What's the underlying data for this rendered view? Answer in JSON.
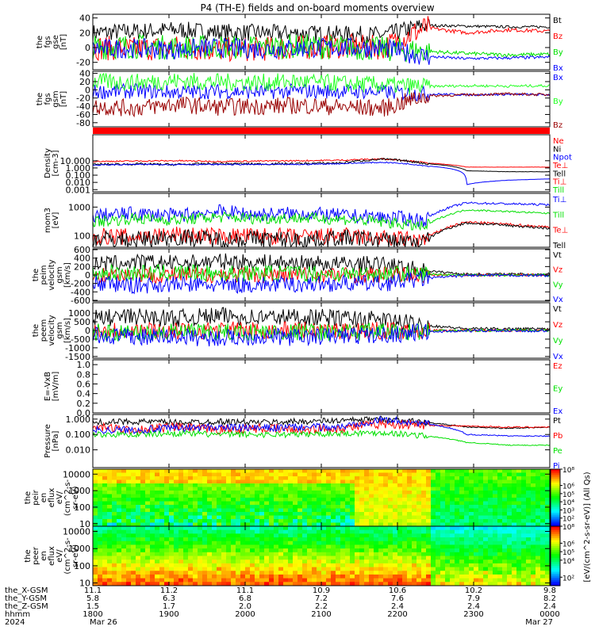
{
  "title": "P4 (TH-E) fields and on-board moments overview",
  "colors": {
    "black": "#000000",
    "red": "#ff0000",
    "green": "#00e000",
    "blue": "#0000ff",
    "darkred": "#990000",
    "lightgreen": "#22ff22"
  },
  "chart_data": [
    {
      "type": "line",
      "id": "fgs_gse",
      "ylabel": [
        "the",
        "fgs",
        "gse",
        "[nT]"
      ],
      "ylim": [
        -30,
        45
      ],
      "yticks": [
        "40",
        "20",
        "0",
        "-20"
      ],
      "ytick_values": [
        40,
        20,
        0,
        -20
      ],
      "series": [
        {
          "name": "Bt",
          "color": "#000000",
          "noise": 0.35,
          "values": [
            20,
            22,
            24,
            21,
            20,
            19,
            18,
            17,
            30,
            29,
            28,
            28
          ]
        },
        {
          "name": "Bz",
          "color": "#ff0000",
          "noise": 0.5,
          "values": [
            0,
            -2,
            0,
            -3,
            -2,
            0,
            2,
            0,
            27,
            20,
            24,
            22
          ]
        },
        {
          "name": "By",
          "color": "#00e000",
          "noise": 0.5,
          "values": [
            0,
            2,
            0,
            1,
            0,
            2,
            0,
            -2,
            -5,
            -8,
            -10,
            -9
          ]
        },
        {
          "name": "Bx",
          "color": "#0000ff",
          "noise": 0.4,
          "values": [
            -2,
            -1,
            -3,
            0,
            -2,
            -1,
            0,
            -1,
            -12,
            -15,
            -14,
            -13
          ]
        }
      ]
    },
    {
      "type": "line",
      "id": "fgs_gsm",
      "ylabel": [
        "the",
        "fgs",
        "gsm",
        "[nT]"
      ],
      "ylim": [
        -90,
        45
      ],
      "yticks": [
        "40",
        "20",
        "0",
        "-20",
        "-40",
        "-60",
        "-80"
      ],
      "ytick_values": [
        40,
        20,
        0,
        -20,
        -40,
        -60,
        -80
      ],
      "series": [
        {
          "name": "Bx",
          "color": "#0000ff",
          "noise": 0.3,
          "values": [
            -5,
            -3,
            -6,
            -4,
            -5,
            -3,
            -4,
            -5,
            -10,
            -12,
            -11,
            -12
          ]
        },
        {
          "name": "By",
          "color": "#22ff22",
          "noise": 0.35,
          "values": [
            20,
            18,
            22,
            19,
            18,
            20,
            15,
            12,
            8,
            10,
            9,
            10
          ]
        },
        {
          "name": "Bz",
          "color": "#990000",
          "noise": 0.35,
          "values": [
            -40,
            -45,
            -35,
            -42,
            -40,
            -38,
            -42,
            -45,
            -15,
            -12,
            -10,
            -12
          ]
        }
      ]
    },
    {
      "type": "line",
      "id": "density",
      "scale": "log",
      "ylabel": [
        "Density",
        "[cm-3]"
      ],
      "ylim": [
        0.0005,
        40000
      ],
      "yticks": [
        "10.000",
        "1.000",
        "0.100",
        "0.010",
        "0.001"
      ],
      "ytick_values": [
        10,
        1,
        0.1,
        0.01,
        0.001
      ],
      "series": [
        {
          "name": "Ne",
          "color": "#ff0000",
          "noise": 0.1,
          "values": [
            8,
            9,
            10,
            8,
            9,
            10,
            12,
            18,
            5,
            1.3,
            1.3,
            1.3
          ]
        },
        {
          "name": "Ni",
          "color": "#000000",
          "noise": 0.15,
          "values": [
            3,
            3.5,
            3,
            4,
            3.5,
            4,
            5,
            16,
            4,
            0.4,
            0.3,
            0.3
          ]
        },
        {
          "name": "Npot",
          "color": "#0000ff",
          "noise": 0.08,
          "values": [
            2.5,
            3,
            3,
            3,
            3,
            3,
            4,
            6,
            2,
            0.005,
            0.02,
            0.03
          ]
        },
        {
          "name": "Te⊥",
          "color": "#ff0000",
          "noise": 0,
          "values": []
        },
        {
          "name": "Tell",
          "color": "#000000",
          "noise": 0,
          "values": []
        },
        {
          "name": "Ti⊥",
          "color": "#ff0000",
          "noise": 0,
          "values": []
        },
        {
          "name": "Till",
          "color": "#00e000",
          "noise": 0,
          "values": []
        }
      ]
    },
    {
      "type": "line",
      "id": "temperature",
      "scale": "log",
      "ylabel": [
        "mom3",
        "[eV]"
      ],
      "ylim": [
        40,
        3000
      ],
      "yticks": [
        "1000",
        "100"
      ],
      "ytick_values": [
        1000,
        100
      ],
      "series": [
        {
          "name": "Ti⊥",
          "color": "#0000ff",
          "noise": 0.25,
          "values": [
            500,
            600,
            500,
            700,
            550,
            600,
            500,
            450,
            350,
            1400,
            1300,
            1200
          ]
        },
        {
          "name": "Till",
          "color": "#00e000",
          "noise": 0.2,
          "values": [
            300,
            400,
            350,
            450,
            400,
            420,
            380,
            300,
            200,
            800,
            700,
            600
          ]
        },
        {
          "name": "Te⊥",
          "color": "#ff0000",
          "noise": 0.3,
          "values": [
            100,
            90,
            110,
            95,
            100,
            90,
            100,
            80,
            70,
            300,
            250,
            200
          ]
        },
        {
          "name": "Tell",
          "color": "#000000",
          "noise": 0.3,
          "values": [
            80,
            70,
            90,
            75,
            80,
            70,
            85,
            70,
            60,
            280,
            230,
            180
          ]
        }
      ]
    },
    {
      "type": "line",
      "id": "peim_velocity",
      "ylabel": [
        "the",
        "peim",
        "velocity",
        "gsm",
        "[km/s]"
      ],
      "ylim": [
        -620,
        620
      ],
      "yticks": [
        "600",
        "400",
        "200",
        "0",
        "-200",
        "-400",
        "-600"
      ],
      "ytick_values": [
        600,
        400,
        200,
        0,
        -200,
        -400,
        -600
      ],
      "series": [
        {
          "name": "Vt",
          "color": "#000000",
          "noise": 0.35,
          "values": [
            250,
            300,
            280,
            320,
            300,
            280,
            260,
            250,
            100,
            20,
            20,
            20
          ]
        },
        {
          "name": "Vz",
          "color": "#ff0000",
          "noise": 0.35,
          "values": [
            0,
            20,
            -10,
            10,
            0,
            10,
            0,
            0,
            0,
            0,
            0,
            0
          ]
        },
        {
          "name": "Vy",
          "color": "#00e000",
          "noise": 0.35,
          "values": [
            50,
            40,
            60,
            30,
            50,
            40,
            20,
            30,
            20,
            0,
            0,
            0
          ]
        },
        {
          "name": "Vx",
          "color": "#0000ff",
          "noise": 0.35,
          "values": [
            -200,
            -250,
            -220,
            -250,
            -230,
            -220,
            -200,
            -200,
            -80,
            -10,
            -10,
            -10
          ]
        }
      ]
    },
    {
      "type": "line",
      "id": "peem_velocity",
      "ylabel": [
        "the",
        "peem",
        "velocity",
        "gsm",
        "[km/s]"
      ],
      "ylim": [
        -1600,
        1600
      ],
      "yticks": [
        "1000",
        "500",
        "0",
        "-500",
        "-1000",
        "-1500"
      ],
      "ytick_values": [
        1000,
        500,
        0,
        -500,
        -1000,
        -1500
      ],
      "series": [
        {
          "name": "Vt",
          "color": "#000000",
          "noise": 0.35,
          "values": [
            700,
            800,
            700,
            850,
            750,
            800,
            700,
            600,
            300,
            100,
            100,
            100
          ]
        },
        {
          "name": "Vz",
          "color": "#ff0000",
          "noise": 0.35,
          "values": [
            0,
            50,
            -50,
            30,
            0,
            20,
            0,
            0,
            0,
            0,
            0,
            0
          ]
        },
        {
          "name": "Vy",
          "color": "#00e000",
          "noise": 0.35,
          "values": [
            -100,
            -150,
            -100,
            -120,
            -100,
            -90,
            -100,
            -80,
            -50,
            0,
            0,
            0
          ]
        },
        {
          "name": "Vx",
          "color": "#0000ff",
          "noise": 0.35,
          "values": [
            -300,
            -400,
            -350,
            -450,
            -350,
            -400,
            -300,
            -250,
            -80,
            -20,
            -20,
            -20
          ]
        }
      ]
    },
    {
      "type": "line",
      "id": "efield",
      "ylabel": [
        "E=-VxB",
        "[mV/m]"
      ],
      "ylim": [
        0,
        1.1
      ],
      "yticks": [
        "1.0",
        "0.8",
        "0.6",
        "0.4",
        "0.2",
        "0.0"
      ],
      "ytick_values": [
        1.0,
        0.8,
        0.6,
        0.4,
        0.2,
        0.0
      ],
      "series": [
        {
          "name": "Ez",
          "color": "#ff0000",
          "noise": 0,
          "values": []
        },
        {
          "name": "Ey",
          "color": "#00e000",
          "noise": 0,
          "values": []
        },
        {
          "name": "Ex",
          "color": "#0000ff",
          "noise": 0,
          "values": []
        }
      ]
    },
    {
      "type": "line",
      "id": "pressure",
      "scale": "log",
      "ylabel": [
        "Pressure",
        "[nPa]"
      ],
      "ylim": [
        0.0007,
        2
      ],
      "yticks": [
        "1.000",
        "0.100",
        "0.010"
      ],
      "ytick_values": [
        1,
        0.1,
        0.01
      ],
      "series": [
        {
          "name": "Pt",
          "color": "#000000",
          "noise": 0.2,
          "values": [
            0.6,
            0.7,
            0.6,
            0.7,
            0.6,
            0.7,
            0.8,
            1.0,
            0.6,
            0.3,
            0.25,
            0.3
          ]
        },
        {
          "name": "Pb",
          "color": "#ff0000",
          "noise": 0.3,
          "values": [
            0.3,
            0.2,
            0.3,
            0.2,
            0.25,
            0.2,
            0.25,
            0.5,
            0.4,
            0.35,
            0.3,
            0.3
          ]
        },
        {
          "name": "Pe",
          "color": "#00e000",
          "noise": 0.2,
          "values": [
            0.1,
            0.1,
            0.12,
            0.1,
            0.1,
            0.1,
            0.12,
            0.13,
            0.08,
            0.03,
            0.02,
            0.02
          ]
        },
        {
          "name": "Pi",
          "color": "#0000ff",
          "noise": 0.25,
          "values": [
            0.2,
            0.2,
            0.25,
            0.3,
            0.25,
            0.3,
            0.3,
            0.9,
            0.5,
            0.1,
            0.08,
            0.08
          ]
        }
      ]
    },
    {
      "type": "heatmap",
      "id": "peir_spectrogram",
      "ylabel": [
        "the",
        "peir",
        "en",
        "eflux",
        "eV/",
        "(cm^2-s-",
        "sr-eV)"
      ],
      "ylim": [
        7,
        20000
      ],
      "yticks": [
        "10000",
        "1000",
        "100",
        "10"
      ],
      "ytick_values": [
        10000,
        1000,
        100,
        10
      ],
      "colorbar": {
        "min_exp": 1,
        "max_exp": 8,
        "ticks": [
          "10⁸",
          "10⁶",
          "10⁵",
          "10⁴",
          "10³",
          "10²"
        ],
        "tick_exps": [
          8,
          6,
          5,
          4,
          3,
          2
        ]
      }
    },
    {
      "type": "heatmap",
      "id": "peer_spectrogram",
      "ylabel": [
        "the",
        "peer",
        "en",
        "eflux",
        "eV/",
        "(cm^2-s-",
        "sr-eV)"
      ],
      "ylim": [
        7,
        20000
      ],
      "yticks": [
        "10000",
        "1000",
        "100",
        "10"
      ],
      "ytick_values": [
        10000,
        1000,
        100,
        10
      ],
      "colorbar": {
        "min_exp": 1,
        "max_exp": 8,
        "ticks": [
          "10⁸",
          "10⁶",
          "10⁵",
          "10⁴",
          "10²"
        ],
        "tick_exps": [
          8,
          6,
          5,
          4,
          2
        ]
      }
    }
  ],
  "colorbar_label": "[eV/(cm^2-s-sr-eV)] (All Qs)",
  "xaxis": {
    "row_labels": [
      "the_X-GSM",
      "the_Y-GSM",
      "the_Z-GSM",
      "hhmm",
      "2024"
    ],
    "columns": [
      {
        "values": [
          "11.1",
          "5.8",
          "1.5",
          "1800",
          "Mar 26"
        ]
      },
      {
        "values": [
          "11.2",
          "6.3",
          "1.7",
          "1900",
          ""
        ]
      },
      {
        "values": [
          "11.1",
          "6.8",
          "2.0",
          "2000",
          ""
        ]
      },
      {
        "values": [
          "10.9",
          "7.2",
          "2.2",
          "2100",
          ""
        ]
      },
      {
        "values": [
          "10.6",
          "7.6",
          "2.4",
          "2200",
          ""
        ]
      },
      {
        "values": [
          "10.2",
          "7.9",
          "2.4",
          "2300",
          ""
        ]
      },
      {
        "values": [
          "9.8",
          "8.2",
          "2.4",
          "0000",
          "Mar 27"
        ]
      }
    ]
  }
}
